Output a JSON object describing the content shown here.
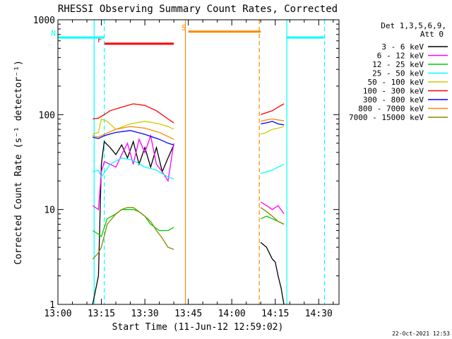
{
  "chart_data": {
    "type": "line",
    "title": "RHESSI Observing Summary Count Rates, Corrected",
    "xlabel": "Start Time (11-Jun-12 12:59:02)",
    "ylabel": "Corrected Count Rate (s⁻¹ detector⁻¹)",
    "x_unit": "minutes after 13:00",
    "xlim": [
      0,
      97
    ],
    "ylim": [
      1,
      1000
    ],
    "yscale": "log",
    "x_ticks": [
      {
        "value": 0,
        "label": "13:00"
      },
      {
        "value": 15,
        "label": "13:15"
      },
      {
        "value": 30,
        "label": "13:30"
      },
      {
        "value": 45,
        "label": "13:45"
      },
      {
        "value": 60,
        "label": "14:00"
      },
      {
        "value": 75,
        "label": "14:15"
      },
      {
        "value": 90,
        "label": "14:30"
      }
    ],
    "y_ticks": [
      {
        "value": 1,
        "label": "1"
      },
      {
        "value": 10,
        "label": "10"
      },
      {
        "value": 100,
        "label": "100"
      },
      {
        "value": 1000,
        "label": "1000"
      }
    ],
    "legend": {
      "header1": "Det 1,3,5,6,9,",
      "header2": "Att 0",
      "placement": "right",
      "entries": [
        {
          "label": "3 - 6 keV",
          "color": "#000000"
        },
        {
          "label": "6 - 12 keV",
          "color": "#ff00ff"
        },
        {
          "label": "12 - 25 keV",
          "color": "#00cc00"
        },
        {
          "label": "25 - 50 keV",
          "color": "#00ffff"
        },
        {
          "label": "50 - 100 keV",
          "color": "#cccc00"
        },
        {
          "label": "100 - 300 keV",
          "color": "#ff0000"
        },
        {
          "label": "300 - 800 keV",
          "color": "#0000ff"
        },
        {
          "label": "800 - 7000 keV",
          "color": "#ff8800"
        },
        {
          "label": "7000 - 15000 keV",
          "color": "#888800"
        }
      ]
    },
    "series": [
      {
        "name": "3 - 6 keV",
        "color": "#000000",
        "segments": [
          {
            "x": [
              12,
              14,
              15,
              16,
              18,
              20,
              22,
              24,
              26,
              28,
              30,
              32,
              34,
              36,
              38,
              40
            ],
            "y": [
              1,
              2,
              30,
              52,
              45,
              38,
              48,
              35,
              52,
              30,
              45,
              28,
              45,
              25,
              35,
              48
            ]
          },
          {
            "x": [
              70,
              72,
              74,
              75,
              76,
              77,
              78
            ],
            "y": [
              4.5,
              4,
              3,
              2.8,
              2,
              1.5,
              1
            ]
          }
        ]
      },
      {
        "name": "6 - 12 keV",
        "color": "#ff00ff",
        "segments": [
          {
            "x": [
              12,
              14,
              15,
              16,
              18,
              20,
              22,
              24,
              26,
              28,
              30,
              32,
              34,
              36,
              38,
              40
            ],
            "y": [
              11,
              10,
              25,
              32,
              30,
              28,
              38,
              50,
              30,
              55,
              40,
              60,
              30,
              25,
              20,
              50
            ]
          },
          {
            "x": [
              70,
              72,
              74,
              76,
              78
            ],
            "y": [
              12,
              11,
              10,
              11,
              9
            ]
          }
        ]
      },
      {
        "name": "12 - 25 keV",
        "color": "#00cc00",
        "segments": [
          {
            "x": [
              12,
              14,
              15,
              17,
              20,
              22,
              24,
              26,
              28,
              30,
              32,
              35,
              38,
              40
            ],
            "y": [
              6,
              5.5,
              5.2,
              8,
              9,
              10,
              10,
              10,
              9.5,
              8.5,
              7,
              6,
              6,
              6.5
            ]
          },
          {
            "x": [
              70,
              72,
              74,
              76,
              78
            ],
            "y": [
              8,
              8.5,
              8,
              7.5,
              7
            ]
          }
        ]
      },
      {
        "name": "25 - 50 keV",
        "color": "#00ffff",
        "segments": [
          {
            "x": [
              12,
              14,
              15,
              18,
              22,
              26,
              30,
              34,
              38,
              40
            ],
            "y": [
              25,
              26,
              22,
              30,
              35,
              33,
              28,
              26,
              22,
              21
            ]
          },
          {
            "x": [
              70,
              72,
              74,
              76,
              78
            ],
            "y": [
              24,
              25,
              26,
              28,
              30
            ]
          }
        ]
      },
      {
        "name": "50 - 100 keV",
        "color": "#cccc00",
        "segments": [
          {
            "x": [
              12,
              14,
              15,
              17,
              20,
              25,
              30,
              35,
              38,
              40
            ],
            "y": [
              62,
              65,
              90,
              85,
              70,
              80,
              85,
              80,
              75,
              70
            ]
          },
          {
            "x": [
              70,
              72,
              74,
              76,
              78
            ],
            "y": [
              62,
              65,
              70,
              72,
              75
            ]
          }
        ]
      },
      {
        "name": "100 - 300 keV",
        "color": "#ff0000",
        "segments": [
          {
            "x": [
              12,
              14,
              16,
              18,
              22,
              26,
              30,
              34,
              38,
              40
            ],
            "y": [
              90,
              92,
              100,
              110,
              120,
              130,
              125,
              110,
              90,
              82
            ]
          },
          {
            "x": [
              70,
              72,
              74,
              76,
              78
            ],
            "y": [
              100,
              105,
              110,
              120,
              130
            ]
          }
        ]
      },
      {
        "name": "300 - 800 keV",
        "color": "#0000ff",
        "segments": [
          {
            "x": [
              12,
              14,
              16,
              20,
              25,
              30,
              35,
              38,
              40
            ],
            "y": [
              58,
              56,
              60,
              65,
              68,
              62,
              55,
              50,
              48
            ]
          },
          {
            "x": [
              70,
              72,
              74,
              76,
              78
            ],
            "y": [
              80,
              82,
              85,
              80,
              78
            ]
          }
        ]
      },
      {
        "name": "800 - 7000 keV",
        "color": "#ff8800",
        "segments": [
          {
            "x": [
              12,
              14,
              16,
              20,
              25,
              30,
              35,
              40
            ],
            "y": [
              60,
              58,
              62,
              70,
              75,
              72,
              65,
              55
            ]
          },
          {
            "x": [
              70,
              72,
              74,
              76,
              78
            ],
            "y": [
              85,
              88,
              90,
              88,
              86
            ]
          }
        ]
      },
      {
        "name": "7000 - 15000 keV",
        "color": "#888800",
        "segments": [
          {
            "x": [
              12,
              14,
              15,
              17,
              20,
              22,
              24,
              26,
              28,
              30,
              32,
              34,
              36,
              38,
              40
            ],
            "y": [
              3,
              3.5,
              4,
              7,
              9,
              10,
              10.5,
              10.5,
              9.5,
              8.5,
              7.5,
              6,
              5,
              4,
              3.8
            ]
          },
          {
            "x": [
              70,
              72,
              74,
              76,
              78
            ],
            "y": [
              10.5,
              9.5,
              8.5,
              7.5,
              7
            ]
          }
        ]
      }
    ],
    "flag_bars": [
      {
        "label": "F",
        "color": "#ff0000",
        "x_start": 16,
        "x_end": 40,
        "y": 560
      },
      {
        "label": "N",
        "color": "#00ffff",
        "x_start": 0,
        "x_end": 16,
        "y": 650
      },
      {
        "label": "",
        "color": "#00ffff",
        "x_start": 79,
        "x_end": 92,
        "y": 650
      },
      {
        "label": "S",
        "color": "#ff8800",
        "x_start": 45,
        "x_end": 70,
        "y": 750
      }
    ],
    "vlines": [
      {
        "x": 12.5,
        "color": "#00ffff",
        "style": "solid"
      },
      {
        "x": 16,
        "color": "#00ffff",
        "style": "dashed"
      },
      {
        "x": 44,
        "color": "#ff8800",
        "style": "solid"
      },
      {
        "x": 69.5,
        "color": "#ff8800",
        "style": "dashed"
      },
      {
        "x": 79,
        "color": "#00ffff",
        "style": "solid"
      },
      {
        "x": 92,
        "color": "#00ffff",
        "style": "dashed"
      }
    ],
    "timestamp": "22-Oct-2021 12:53"
  }
}
